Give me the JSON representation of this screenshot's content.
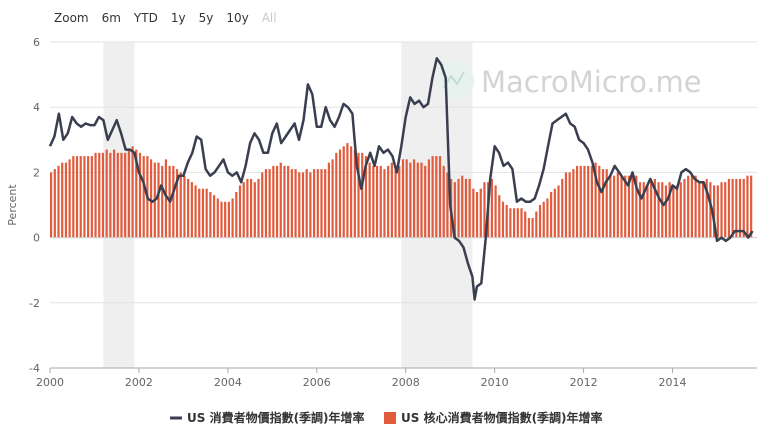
{
  "zoom": {
    "label": "Zoom",
    "buttons": [
      "6m",
      "YTD",
      "1y",
      "5y",
      "10y",
      "All"
    ],
    "disabled": [
      false,
      false,
      false,
      false,
      false,
      true
    ]
  },
  "watermark": "MacroMicro.me",
  "chart_data": {
    "type": "bar",
    "title": "",
    "ylabel": "Percent",
    "ylim": [
      -4,
      6
    ],
    "yticks": [
      -4,
      -2,
      0,
      2,
      4,
      6
    ],
    "xlim": [
      2000,
      2015.9
    ],
    "xticks": [
      2000,
      2002,
      2004,
      2006,
      2008,
      2010,
      2012,
      2014
    ],
    "grid": true,
    "legend_position": "bottom-center",
    "shaded_ranges": [
      [
        2001.2,
        2001.9
      ],
      [
        2007.9,
        2009.5
      ]
    ],
    "colors": {
      "line": "#3a3f4f",
      "bars": "#e15b3d",
      "shade": "#efefef",
      "grid": "#e3e3e3"
    },
    "series": [
      {
        "name": "US 消費者物價指數(季調)年增率",
        "type": "line",
        "points": [
          [
            2000.0,
            2.8
          ],
          [
            2000.1,
            3.1
          ],
          [
            2000.2,
            3.8
          ],
          [
            2000.3,
            3.0
          ],
          [
            2000.4,
            3.2
          ],
          [
            2000.5,
            3.7
          ],
          [
            2000.6,
            3.5
          ],
          [
            2000.7,
            3.4
          ],
          [
            2000.8,
            3.5
          ],
          [
            2000.9,
            3.45
          ],
          [
            2001.0,
            3.45
          ],
          [
            2001.1,
            3.7
          ],
          [
            2001.2,
            3.6
          ],
          [
            2001.3,
            3.0
          ],
          [
            2001.4,
            3.3
          ],
          [
            2001.5,
            3.6
          ],
          [
            2001.6,
            3.2
          ],
          [
            2001.7,
            2.7
          ],
          [
            2001.8,
            2.7
          ],
          [
            2001.9,
            2.6
          ],
          [
            2002.0,
            2.0
          ],
          [
            2002.1,
            1.7
          ],
          [
            2002.2,
            1.2
          ],
          [
            2002.3,
            1.1
          ],
          [
            2002.4,
            1.2
          ],
          [
            2002.5,
            1.6
          ],
          [
            2002.6,
            1.3
          ],
          [
            2002.7,
            1.1
          ],
          [
            2002.8,
            1.5
          ],
          [
            2002.9,
            1.9
          ],
          [
            2003.0,
            1.9
          ],
          [
            2003.1,
            2.3
          ],
          [
            2003.2,
            2.6
          ],
          [
            2003.3,
            3.1
          ],
          [
            2003.4,
            3.0
          ],
          [
            2003.5,
            2.1
          ],
          [
            2003.6,
            1.9
          ],
          [
            2003.7,
            2.0
          ],
          [
            2003.8,
            2.2
          ],
          [
            2003.9,
            2.4
          ],
          [
            2004.0,
            2.0
          ],
          [
            2004.1,
            1.9
          ],
          [
            2004.2,
            2.0
          ],
          [
            2004.3,
            1.7
          ],
          [
            2004.4,
            2.2
          ],
          [
            2004.5,
            2.9
          ],
          [
            2004.6,
            3.2
          ],
          [
            2004.7,
            3.0
          ],
          [
            2004.8,
            2.6
          ],
          [
            2004.9,
            2.6
          ],
          [
            2005.0,
            3.2
          ],
          [
            2005.1,
            3.5
          ],
          [
            2005.2,
            2.9
          ],
          [
            2005.3,
            3.1
          ],
          [
            2005.4,
            3.3
          ],
          [
            2005.5,
            3.5
          ],
          [
            2005.6,
            3.0
          ],
          [
            2005.7,
            3.6
          ],
          [
            2005.8,
            4.7
          ],
          [
            2005.9,
            4.4
          ],
          [
            2006.0,
            3.4
          ],
          [
            2006.1,
            3.4
          ],
          [
            2006.2,
            4.0
          ],
          [
            2006.3,
            3.6
          ],
          [
            2006.4,
            3.4
          ],
          [
            2006.5,
            3.7
          ],
          [
            2006.6,
            4.1
          ],
          [
            2006.7,
            4.0
          ],
          [
            2006.8,
            3.8
          ],
          [
            2006.9,
            2.2
          ],
          [
            2007.0,
            1.5
          ],
          [
            2007.1,
            2.2
          ],
          [
            2007.2,
            2.6
          ],
          [
            2007.3,
            2.2
          ],
          [
            2007.4,
            2.8
          ],
          [
            2007.5,
            2.6
          ],
          [
            2007.6,
            2.7
          ],
          [
            2007.7,
            2.5
          ],
          [
            2007.8,
            2.0
          ],
          [
            2007.9,
            2.8
          ],
          [
            2008.0,
            3.7
          ],
          [
            2008.1,
            4.3
          ],
          [
            2008.2,
            4.1
          ],
          [
            2008.3,
            4.2
          ],
          [
            2008.4,
            4.0
          ],
          [
            2008.5,
            4.1
          ],
          [
            2008.6,
            4.9
          ],
          [
            2008.7,
            5.5
          ],
          [
            2008.8,
            5.3
          ],
          [
            2008.9,
            4.9
          ],
          [
            2009.0,
            1.0
          ],
          [
            2009.1,
            0.0
          ],
          [
            2009.2,
            -0.1
          ],
          [
            2009.3,
            -0.3
          ],
          [
            2009.4,
            -0.8
          ],
          [
            2009.5,
            -1.2
          ],
          [
            2009.55,
            -1.9
          ],
          [
            2009.6,
            -1.5
          ],
          [
            2009.7,
            -1.4
          ],
          [
            2009.8,
            0.0
          ],
          [
            2009.9,
            1.8
          ],
          [
            2010.0,
            2.8
          ],
          [
            2010.1,
            2.6
          ],
          [
            2010.2,
            2.2
          ],
          [
            2010.3,
            2.3
          ],
          [
            2010.4,
            2.1
          ],
          [
            2010.5,
            1.1
          ],
          [
            2010.6,
            1.2
          ],
          [
            2010.7,
            1.1
          ],
          [
            2010.8,
            1.1
          ],
          [
            2010.9,
            1.2
          ],
          [
            2011.0,
            1.6
          ],
          [
            2011.1,
            2.1
          ],
          [
            2011.2,
            2.8
          ],
          [
            2011.3,
            3.5
          ],
          [
            2011.4,
            3.6
          ],
          [
            2011.5,
            3.7
          ],
          [
            2011.6,
            3.8
          ],
          [
            2011.7,
            3.5
          ],
          [
            2011.8,
            3.4
          ],
          [
            2011.9,
            3.0
          ],
          [
            2012.0,
            2.9
          ],
          [
            2012.1,
            2.7
          ],
          [
            2012.2,
            2.3
          ],
          [
            2012.3,
            1.7
          ],
          [
            2012.4,
            1.4
          ],
          [
            2012.5,
            1.7
          ],
          [
            2012.6,
            1.9
          ],
          [
            2012.7,
            2.2
          ],
          [
            2012.8,
            2.0
          ],
          [
            2012.9,
            1.8
          ],
          [
            2013.0,
            1.6
          ],
          [
            2013.1,
            2.0
          ],
          [
            2013.2,
            1.5
          ],
          [
            2013.3,
            1.2
          ],
          [
            2013.4,
            1.5
          ],
          [
            2013.5,
            1.8
          ],
          [
            2013.6,
            1.5
          ],
          [
            2013.7,
            1.2
          ],
          [
            2013.8,
            1.0
          ],
          [
            2013.9,
            1.2
          ],
          [
            2014.0,
            1.6
          ],
          [
            2014.1,
            1.5
          ],
          [
            2014.2,
            2.0
          ],
          [
            2014.3,
            2.1
          ],
          [
            2014.4,
            2.0
          ],
          [
            2014.5,
            1.8
          ],
          [
            2014.6,
            1.7
          ],
          [
            2014.7,
            1.7
          ],
          [
            2014.8,
            1.3
          ],
          [
            2014.9,
            0.8
          ],
          [
            2015.0,
            -0.1
          ],
          [
            2015.1,
            0.0
          ],
          [
            2015.2,
            -0.1
          ],
          [
            2015.3,
            0.0
          ],
          [
            2015.4,
            0.2
          ],
          [
            2015.5,
            0.2
          ],
          [
            2015.6,
            0.2
          ],
          [
            2015.7,
            0.0
          ],
          [
            2015.8,
            0.2
          ]
        ]
      },
      {
        "name": "US 核心消費者物價指數(季調)年增率",
        "type": "bar",
        "x_start": 2000.0,
        "x_step": 0.0833,
        "values": [
          2.0,
          2.1,
          2.2,
          2.3,
          2.3,
          2.4,
          2.5,
          2.5,
          2.5,
          2.5,
          2.5,
          2.5,
          2.6,
          2.6,
          2.6,
          2.7,
          2.6,
          2.7,
          2.6,
          2.6,
          2.6,
          2.7,
          2.8,
          2.7,
          2.6,
          2.5,
          2.5,
          2.4,
          2.3,
          2.3,
          2.2,
          2.4,
          2.2,
          2.2,
          2.1,
          2.0,
          1.9,
          1.8,
          1.7,
          1.6,
          1.5,
          1.5,
          1.5,
          1.4,
          1.3,
          1.2,
          1.1,
          1.1,
          1.1,
          1.2,
          1.4,
          1.6,
          1.7,
          1.8,
          1.8,
          1.7,
          1.8,
          2.0,
          2.1,
          2.1,
          2.2,
          2.2,
          2.3,
          2.2,
          2.2,
          2.1,
          2.1,
          2.0,
          2.0,
          2.1,
          2.0,
          2.1,
          2.1,
          2.1,
          2.1,
          2.3,
          2.4,
          2.6,
          2.7,
          2.8,
          2.9,
          2.8,
          2.7,
          2.6,
          2.6,
          2.5,
          2.3,
          2.2,
          2.2,
          2.2,
          2.1,
          2.2,
          2.3,
          2.2,
          2.2,
          2.4,
          2.4,
          2.3,
          2.4,
          2.3,
          2.3,
          2.2,
          2.4,
          2.5,
          2.5,
          2.5,
          2.2,
          2.0,
          1.8,
          1.7,
          1.8,
          1.9,
          1.8,
          1.8,
          1.5,
          1.4,
          1.5,
          1.7,
          1.7,
          1.8,
          1.6,
          1.3,
          1.1,
          1.0,
          0.9,
          0.9,
          0.9,
          0.9,
          0.8,
          0.6,
          0.6,
          0.8,
          1.0,
          1.1,
          1.2,
          1.4,
          1.5,
          1.6,
          1.8,
          2.0,
          2.0,
          2.1,
          2.2,
          2.2,
          2.2,
          2.2,
          2.2,
          2.3,
          2.2,
          2.1,
          2.1,
          1.9,
          1.9,
          2.0,
          1.9,
          1.9,
          1.9,
          2.0,
          1.9,
          1.7,
          1.7,
          1.6,
          1.7,
          1.8,
          1.7,
          1.7,
          1.6,
          1.7,
          1.6,
          1.6,
          1.7,
          1.8,
          1.9,
          1.9,
          1.9,
          1.7,
          1.7,
          1.8,
          1.7,
          1.6,
          1.6,
          1.7,
          1.7,
          1.8,
          1.8,
          1.8,
          1.8,
          1.8,
          1.9,
          1.9
        ]
      }
    ]
  }
}
